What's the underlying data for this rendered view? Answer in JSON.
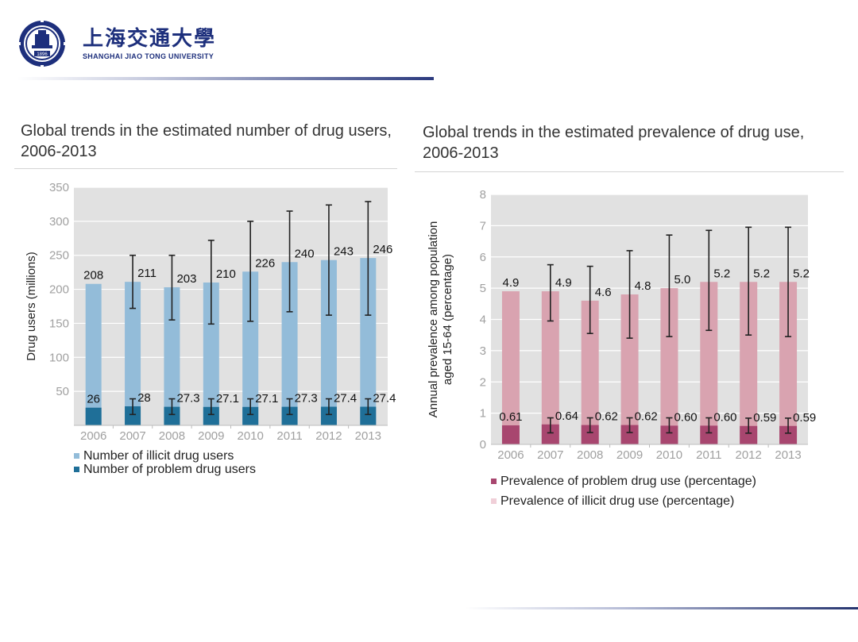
{
  "header": {
    "logo_cn": "上海交通大學",
    "logo_en": "SHANGHAI  JIAO TONG  UNIVERSITY",
    "logo_seal_text": "1896",
    "colors": {
      "brand": "#1d2f7c"
    }
  },
  "chart_data": [
    {
      "type": "bar",
      "title": "Global trends in the estimated number of drug users, 2006-2013",
      "ylabel": "Drug users (millions)",
      "xlabel": "",
      "ylim": [
        0,
        350
      ],
      "yticks": [
        50,
        100,
        150,
        200,
        250,
        300,
        350
      ],
      "grid": true,
      "categories": [
        "2006",
        "2007",
        "2008",
        "2009",
        "2010",
        "2011",
        "2012",
        "2013"
      ],
      "series": [
        {
          "name": "Number of illicit drug users",
          "color": "#93bcd9",
          "values": [
            208,
            211,
            203,
            210,
            226,
            240,
            243,
            246
          ],
          "labels": [
            "208",
            "211",
            "203",
            "210",
            "226",
            "240",
            "243",
            "246"
          ],
          "error_low": [
            null,
            172,
            155,
            149,
            153,
            167,
            162,
            162
          ],
          "error_high": [
            null,
            250,
            250,
            272,
            300,
            315,
            324,
            329
          ]
        },
        {
          "name": "Number of problem drug users",
          "color": "#1f6f98",
          "values": [
            26,
            28,
            27.3,
            27.1,
            27.1,
            27.3,
            27.4,
            27.4
          ],
          "labels": [
            "26",
            "28",
            "27.3",
            "27.1",
            "27.1",
            "27.3",
            "27.4",
            "27.4"
          ],
          "error_low": [
            null,
            16,
            16,
            16,
            16,
            16,
            16,
            16
          ],
          "error_high": [
            null,
            39,
            39,
            39,
            39,
            39,
            39,
            39
          ]
        }
      ],
      "legend": [
        "Number of illicit drug users",
        "Number of problem drug users"
      ],
      "legend_position": "bottom-left"
    },
    {
      "type": "bar",
      "title": "Global trends in the estimated prevalence of drug use, 2006-2013",
      "ylabel": "Annual prevalence among population aged 15-64 (percentage)",
      "xlabel": "",
      "ylim": [
        0,
        8
      ],
      "yticks": [
        0,
        1,
        2,
        3,
        4,
        5,
        6,
        7,
        8
      ],
      "grid": true,
      "categories": [
        "2006",
        "2007",
        "2008",
        "2009",
        "2010",
        "2011",
        "2012",
        "2013"
      ],
      "series": [
        {
          "name": "Prevalence of illicit drug use (percentage)",
          "color": "#d9a3b0",
          "values": [
            4.9,
            4.9,
            4.6,
            4.8,
            5.0,
            5.2,
            5.2,
            5.2
          ],
          "labels": [
            "4.9",
            "4.9",
            "4.6",
            "4.8",
            "5.0",
            "5.2",
            "5.2",
            "5.2"
          ],
          "error_low": [
            null,
            3.95,
            3.55,
            3.4,
            3.45,
            3.65,
            3.5,
            3.45
          ],
          "error_high": [
            null,
            5.75,
            5.7,
            6.2,
            6.7,
            6.85,
            6.95,
            6.95
          ]
        },
        {
          "name": "Prevalence of problem drug use (percentage)",
          "color": "#a8466f",
          "values": [
            0.61,
            0.64,
            0.62,
            0.62,
            0.6,
            0.6,
            0.59,
            0.59
          ],
          "labels": [
            "0.61",
            "0.64",
            "0.62",
            "0.62",
            "0.60",
            "0.60",
            "0.59",
            "0.59"
          ],
          "error_low": [
            null,
            0.37,
            0.38,
            0.38,
            0.37,
            0.37,
            0.36,
            0.36
          ],
          "error_high": [
            null,
            0.85,
            0.85,
            0.85,
            0.85,
            0.85,
            0.84,
            0.84
          ]
        }
      ],
      "legend": [
        "Prevalence of problem drug use (percentage)",
        "Prevalence of illicit drug use (percentage)"
      ],
      "legend_position": "bottom-left"
    }
  ]
}
